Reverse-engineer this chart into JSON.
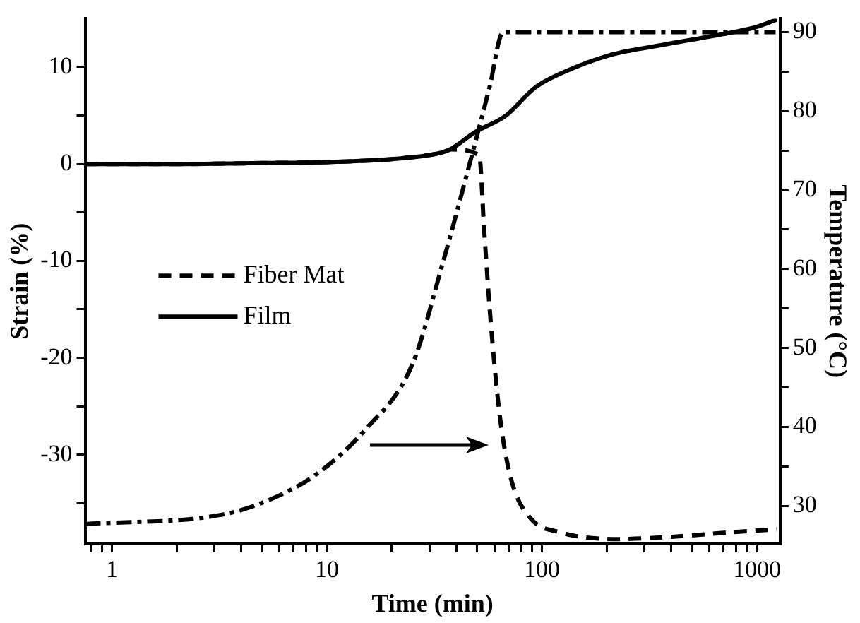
{
  "chart_data": {
    "type": "line",
    "xlabel": "Time (min)",
    "ylabel": "Strain (%)",
    "y2label": "Temperature (°C)",
    "log": "x",
    "xlim": [
      0.75,
      1280
    ],
    "xticks": [
      {
        "value": 0.8,
        "label": null
      },
      {
        "value": 0.9,
        "label": null
      },
      1,
      {
        "value": 2,
        "label": null
      },
      {
        "value": 3,
        "label": null
      },
      {
        "value": 4,
        "label": null
      },
      {
        "value": 5,
        "label": null
      },
      {
        "value": 6,
        "label": null
      },
      {
        "value": 7,
        "label": null
      },
      {
        "value": 8,
        "label": null
      },
      {
        "value": 9,
        "label": null
      },
      10,
      {
        "value": 20,
        "label": null
      },
      {
        "value": 30,
        "label": null
      },
      {
        "value": 40,
        "label": null
      },
      {
        "value": 50,
        "label": null
      },
      {
        "value": 60,
        "label": null
      },
      {
        "value": 70,
        "label": null
      },
      {
        "value": 80,
        "label": null
      },
      {
        "value": 90,
        "label": null
      },
      100,
      {
        "value": 200,
        "label": null
      },
      {
        "value": 300,
        "label": null
      },
      {
        "value": 400,
        "label": null
      },
      {
        "value": 500,
        "label": null
      },
      {
        "value": 600,
        "label": null
      },
      {
        "value": 700,
        "label": null
      },
      {
        "value": 800,
        "label": null
      },
      {
        "value": 900,
        "label": null
      },
      1000
    ],
    "ylim": [
      -39.2,
      15
    ],
    "yticks": [
      {
        "value": -35,
        "label": null
      },
      -30,
      {
        "value": -25,
        "label": null
      },
      -20,
      {
        "value": -15,
        "label": null
      },
      -10,
      {
        "value": -5,
        "label": null
      },
      0,
      {
        "value": 5,
        "label": null
      },
      10
    ],
    "y2lim": [
      25.2,
      91.7
    ],
    "y2ticks": [
      30,
      {
        "value": 35,
        "label": null
      },
      40,
      {
        "value": 45,
        "label": null
      },
      50,
      {
        "value": 55,
        "label": null
      },
      60,
      {
        "value": 65,
        "label": null
      },
      70,
      {
        "value": 75,
        "label": null
      },
      80,
      {
        "value": 85,
        "label": null
      },
      90
    ],
    "grid": false,
    "legend": "left",
    "marker": "none",
    "series": [
      {
        "name": "Fiber Mat",
        "color": "#000000",
        "line_style": "dashed",
        "x": [
          0.75,
          2,
          5,
          10,
          22.5,
          34.5,
          38,
          51,
          54,
          58,
          64,
          72,
          88,
          121,
          226,
          445,
          756,
          1236
        ],
        "values": [
          0,
          0,
          0.1,
          0.2,
          0.6,
          1.2,
          1.5,
          0.9,
          -7.3,
          -16.8,
          -26.4,
          -32.6,
          -36.5,
          -38,
          -38.7,
          -38.4,
          -38,
          -37.7
        ]
      },
      {
        "name": "Film",
        "color": "#000000",
        "line_style": "solid",
        "x": [
          0.75,
          2,
          5,
          10,
          22.5,
          34.5,
          38,
          49,
          68,
          93,
          127,
          204,
          344,
          582,
          977,
          1236
        ],
        "values": [
          0,
          0,
          0.1,
          0.2,
          0.6,
          1.2,
          1.6,
          3.3,
          5,
          7.9,
          9.5,
          11.2,
          12.2,
          13.1,
          14.1,
          14.9
        ]
      },
      {
        "color": "#000000",
        "line_style": "dashdot",
        "axis": "y2",
        "x": [
          0.75,
          3.25,
          5.2,
          8.7,
          15,
          25,
          34.5,
          47,
          57,
          66,
          1220
        ],
        "values": [
          27.7,
          28.9,
          30.6,
          33.8,
          39.6,
          48,
          60.7,
          74.2,
          83,
          90,
          90
        ]
      }
    ]
  }
}
